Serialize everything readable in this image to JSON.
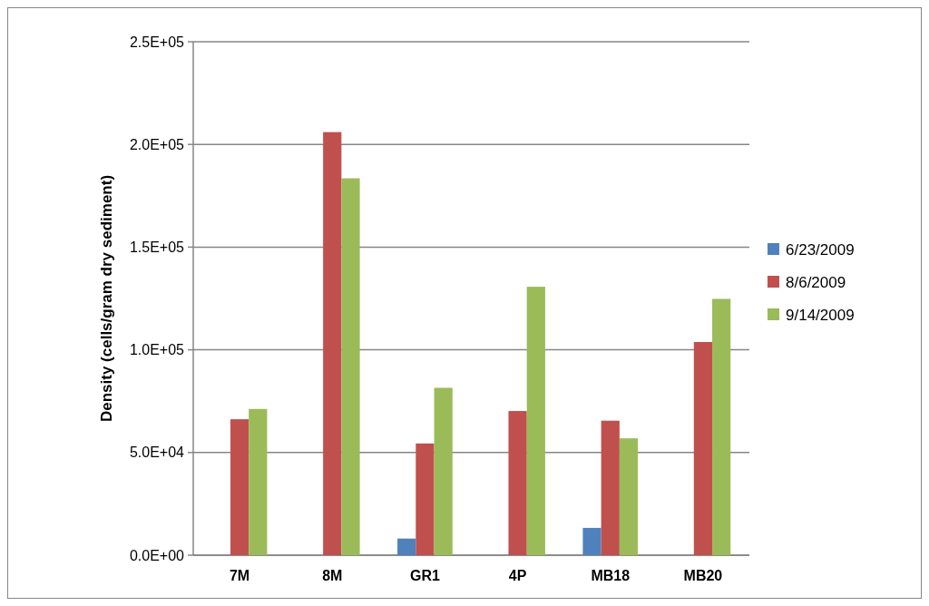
{
  "chart_data": {
    "type": "bar",
    "ylabel": "Density (cells/gram dry sediment)",
    "categories": [
      "7M",
      "8M",
      "GR1",
      "4P",
      "MB18",
      "MB20"
    ],
    "series": [
      {
        "name": "6/23/2009",
        "color": "#4f81bd",
        "values": [
          null,
          null,
          8100,
          null,
          13300,
          null
        ]
      },
      {
        "name": "8/6/2009",
        "color": "#c0504d",
        "values": [
          66200,
          206000,
          54400,
          70200,
          65500,
          103800
        ]
      },
      {
        "name": "9/14/2009",
        "color": "#9bbb59",
        "values": [
          71200,
          183500,
          81500,
          130700,
          56900,
          124800
        ]
      }
    ],
    "ylim": [
      0,
      250000
    ],
    "yticks": [
      {
        "value": 0,
        "label": "0.0E+00"
      },
      {
        "value": 50000,
        "label": "5.0E+04"
      },
      {
        "value": 100000,
        "label": "1.0E+05"
      },
      {
        "value": 150000,
        "label": "1.5E+05"
      },
      {
        "value": 200000,
        "label": "2.0E+05"
      },
      {
        "value": 250000,
        "label": "2.5E+05"
      }
    ],
    "grid": "y",
    "legend": "right"
  }
}
